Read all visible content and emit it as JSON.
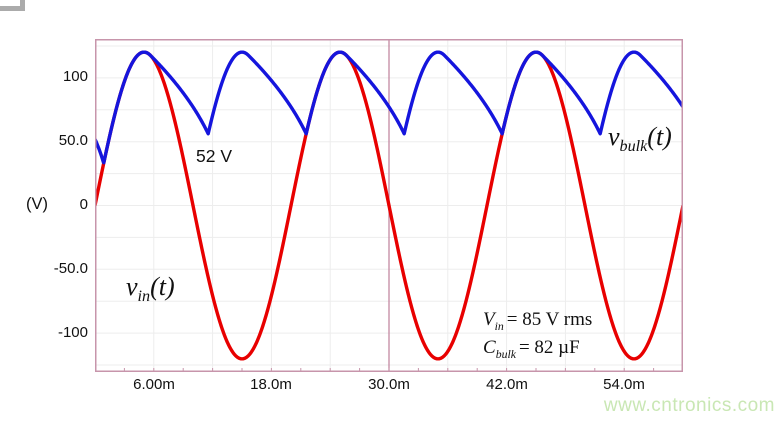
{
  "chart_data": {
    "type": "line",
    "title": "",
    "x_axis": {
      "unit": "ms",
      "range": [
        0,
        60
      ],
      "tick_values": [
        6,
        18,
        30,
        42,
        54
      ],
      "tick_labels": [
        "6.00m",
        "18.0m",
        "30.0m",
        "42.0m",
        "54.0m"
      ],
      "grid_interval_ms": 6,
      "minor_tick_ms": 3,
      "divider_at_ms": 30
    },
    "y_axis": {
      "label": "(V)",
      "range": [
        -130.5,
        130.5
      ],
      "tick_values": [
        100,
        50,
        0,
        -50,
        -100
      ],
      "tick_labels": [
        "100",
        "50.0",
        "0",
        "-50.0",
        "-100"
      ],
      "grid_interval_v": 25
    },
    "series": [
      {
        "name": "v_in(t)",
        "model": "sine",
        "color": "#e80000",
        "amplitude_v": 120.2,
        "frequency_hz": 50,
        "rms_label": "85 V rms"
      },
      {
        "name": "v_bulk(t)",
        "model": "peak_detector",
        "color": "#1515dd",
        "initial_v": 52,
        "peak_v": 120,
        "valley_v": 52,
        "discharge_k_v2_per_ms": 1813,
        "capacitance_label": "82 µF"
      }
    ],
    "style": {
      "grid_color": "#ededed",
      "frame_color": "#c795ab",
      "divider_color": "#c488a2",
      "line_width": 3.4,
      "sample_step_ms": 0.05,
      "legend": "off"
    }
  },
  "labels": {
    "y_unit": "(V)",
    "min_voltage_annotation": "52 V",
    "vin": {
      "base": "v",
      "sub": "in",
      "arg": "(t)"
    },
    "vbulk": {
      "base": "v",
      "sub": "bulk",
      "arg": "(t)"
    },
    "eq_vin": {
      "base": "V",
      "sub": "in",
      "rest": "= 85 V rms"
    },
    "eq_cbulk": {
      "base": "C",
      "sub": "bulk",
      "rest": "= 82 µF"
    }
  },
  "watermark": {
    "text": "www.cntronics.com",
    "color": "#c9e7b4"
  }
}
